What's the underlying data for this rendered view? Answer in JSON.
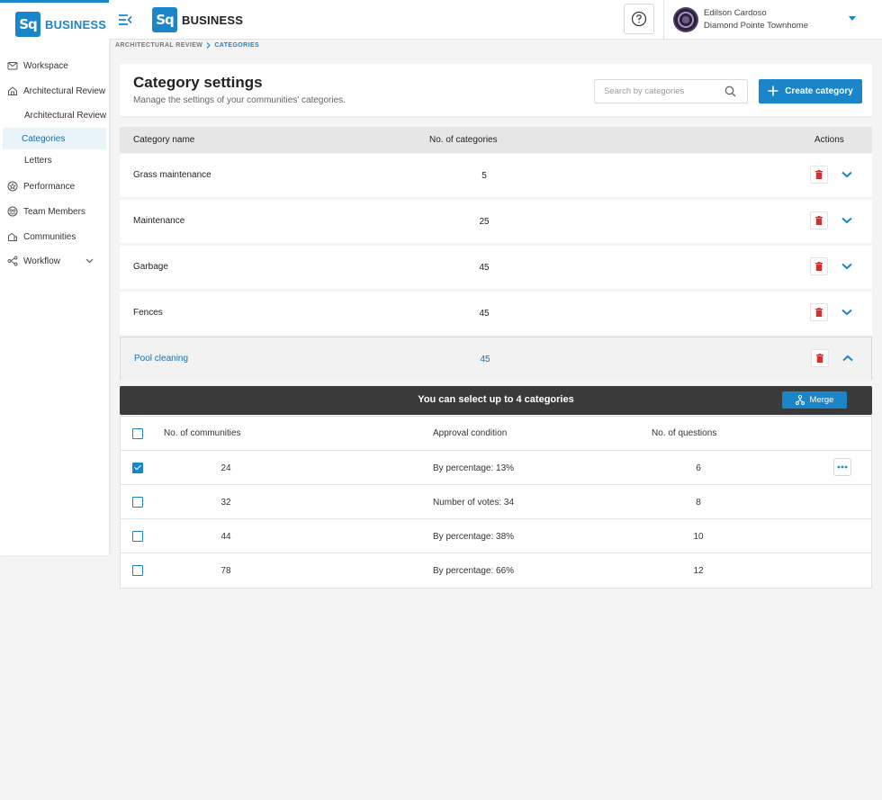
{
  "app": {
    "brand": "BUSINESS",
    "logo_text": "Sq"
  },
  "sidebar": {
    "items": [
      {
        "label": "Workspace",
        "icon": "envelope-icon"
      },
      {
        "label": "Architectural Review",
        "icon": "house-icon"
      },
      {
        "label": "Architectural Review",
        "sub": true
      },
      {
        "label": "Categories",
        "sub": true,
        "active": true
      },
      {
        "label": "Letters",
        "sub": true
      },
      {
        "label": "Performance",
        "icon": "star-badge-icon"
      },
      {
        "label": "Team Members",
        "icon": "team-icon"
      },
      {
        "label": "Communities",
        "icon": "buildings-icon"
      },
      {
        "label": "Workflow",
        "icon": "workflow-icon",
        "has_chevron": true
      }
    ]
  },
  "topbar": {
    "brand": "BUSINESS",
    "user_name": "Edilson Cardoso",
    "user_community": "Diamond Pointe Townhome"
  },
  "breadcrumb": {
    "parent": "ARCHITECTURAL REVIEW",
    "current": "CATEGORIES"
  },
  "header": {
    "title": "Category settings",
    "subtitle": "Manage the settings of your communities' categories.",
    "search_placeholder": "Search by categories",
    "create_label": "Create category"
  },
  "table": {
    "columns": [
      "Category name",
      "No. of categories",
      "Actions"
    ],
    "rows": [
      {
        "name": "Grass maintenance",
        "count": "5"
      },
      {
        "name": "Maintenance",
        "count": "25"
      },
      {
        "name": "Garbage",
        "count": "45"
      },
      {
        "name": "Fences",
        "count": "45"
      },
      {
        "name": "Pool cleaning",
        "count": "45",
        "expanded": true
      }
    ]
  },
  "merge_bar": {
    "text": "You can select up to 4 categories",
    "button_label": "Merge"
  },
  "subtable": {
    "columns": [
      "No. of communities",
      "Approval condition",
      "No. of questions"
    ],
    "rows": [
      {
        "communities": "24",
        "condition": "By percentage: 13%",
        "questions": "6",
        "checked": true
      },
      {
        "communities": "32",
        "condition": "Number of votes: 34",
        "questions": "8",
        "checked": false
      },
      {
        "communities": "44",
        "condition": "By percentage: 38%",
        "questions": "10",
        "checked": false
      },
      {
        "communities": "78",
        "condition": "By percentage: 66%",
        "questions": "12",
        "checked": false
      }
    ]
  },
  "colors": {
    "accent": "#1a85c8",
    "danger": "#d32f2f",
    "merge_bar": "#3a3a3a"
  }
}
